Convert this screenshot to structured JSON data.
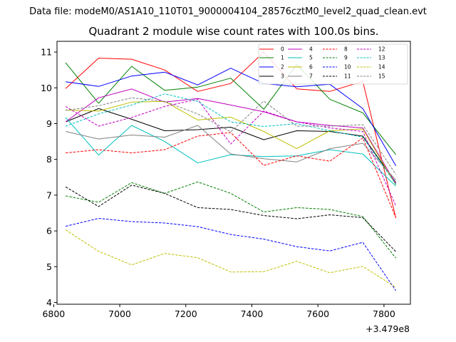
{
  "file_label": "Data file: modeM0/AS1A10_110T01_9000004104_28576cztM0_level2_quad_clean.evt",
  "chart_data": {
    "type": "line",
    "title": "Quadrant 2 module wise count rates with 100.0s bins.",
    "xlabel": "",
    "ylabel": "",
    "x_offset_label": "+3.479e8",
    "xlim": [
      6810,
      7880
    ],
    "ylim": [
      3.95,
      11.3
    ],
    "x_ticks": [
      6800,
      7000,
      7200,
      7400,
      7600,
      7800
    ],
    "y_ticks": [
      4,
      5,
      6,
      7,
      8,
      9,
      10,
      11
    ],
    "grid": false,
    "legend_position": "top-right",
    "x": [
      6836,
      6936,
      7036,
      7136,
      7236,
      7336,
      7436,
      7536,
      7636,
      7736,
      7836
    ],
    "series": [
      {
        "name": "0",
        "color": "#ff0000",
        "dash": "solid",
        "values": [
          9.98,
          10.83,
          10.8,
          10.5,
          9.9,
          10.12,
          11.0,
          9.97,
          9.9,
          10.18,
          6.36
        ]
      },
      {
        "name": "1",
        "color": "#008000",
        "dash": "solid",
        "values": [
          10.7,
          9.57,
          10.6,
          9.93,
          10.02,
          10.27,
          9.4,
          10.65,
          9.68,
          9.3,
          8.13
        ]
      },
      {
        "name": "2",
        "color": "#0000ff",
        "dash": "solid",
        "values": [
          10.17,
          10.04,
          10.33,
          10.44,
          10.08,
          10.55,
          10.12,
          10.03,
          10.1,
          9.42,
          7.82
        ]
      },
      {
        "name": "3",
        "color": "#000000",
        "dash": "solid",
        "values": [
          9.05,
          9.42,
          9.12,
          8.8,
          8.83,
          8.9,
          8.55,
          8.8,
          8.78,
          8.65,
          7.35
        ]
      },
      {
        "name": "4",
        "color": "#c000c0",
        "dash": "solid",
        "values": [
          9.05,
          9.72,
          9.97,
          9.6,
          9.7,
          9.52,
          9.33,
          9.05,
          8.95,
          8.88,
          7.32
        ]
      },
      {
        "name": "5",
        "color": "#00bfbf",
        "dash": "solid",
        "values": [
          9.17,
          8.12,
          8.95,
          8.5,
          7.9,
          8.13,
          8.08,
          8.1,
          8.27,
          8.15,
          7.25
        ]
      },
      {
        "name": "6",
        "color": "#bfbf00",
        "dash": "solid",
        "values": [
          9.38,
          9.35,
          9.6,
          9.62,
          9.1,
          9.18,
          8.78,
          8.3,
          8.8,
          8.85,
          7.28
        ]
      },
      {
        "name": "7",
        "color": "#808080",
        "dash": "solid",
        "values": [
          8.78,
          8.57,
          8.68,
          8.62,
          8.95,
          8.15,
          8.02,
          7.93,
          8.3,
          8.45,
          7.42
        ]
      },
      {
        "name": "8",
        "color": "#ff0000",
        "dash": "dashed",
        "values": [
          8.18,
          8.27,
          8.18,
          8.27,
          8.65,
          8.75,
          7.83,
          8.1,
          7.95,
          8.6,
          6.37
        ]
      },
      {
        "name": "9",
        "color": "#008000",
        "dash": "dashed",
        "values": [
          6.98,
          6.8,
          7.35,
          7.05,
          7.37,
          7.05,
          6.53,
          6.65,
          6.6,
          6.4,
          5.24
        ]
      },
      {
        "name": "10",
        "color": "#0000ff",
        "dash": "dashed",
        "values": [
          6.13,
          6.35,
          6.26,
          6.22,
          6.12,
          5.9,
          5.77,
          5.56,
          5.44,
          5.68,
          4.33
        ]
      },
      {
        "name": "11",
        "color": "#000000",
        "dash": "dashed",
        "values": [
          7.23,
          6.68,
          7.28,
          7.05,
          6.65,
          6.6,
          6.43,
          6.34,
          6.45,
          6.37,
          5.42
        ]
      },
      {
        "name": "12",
        "color": "#c000c0",
        "dash": "dashed",
        "values": [
          9.48,
          8.93,
          9.17,
          9.48,
          9.68,
          8.43,
          9.35,
          9.05,
          8.88,
          8.78,
          6.7
        ]
      },
      {
        "name": "13",
        "color": "#00bfbf",
        "dash": "dashed",
        "values": [
          8.93,
          9.27,
          9.52,
          9.83,
          9.62,
          9.05,
          8.92,
          9.0,
          8.8,
          8.62,
          7.3
        ]
      },
      {
        "name": "14",
        "color": "#bfbf00",
        "dash": "dashed",
        "values": [
          6.03,
          5.43,
          5.05,
          5.37,
          5.25,
          4.85,
          4.86,
          5.15,
          4.83,
          5.01,
          4.42
        ]
      },
      {
        "name": "15",
        "color": "#808080",
        "dash": "dashed",
        "values": [
          9.37,
          9.5,
          9.72,
          9.62,
          9.27,
          8.77,
          9.63,
          8.93,
          8.93,
          8.97,
          7.58
        ]
      }
    ]
  }
}
